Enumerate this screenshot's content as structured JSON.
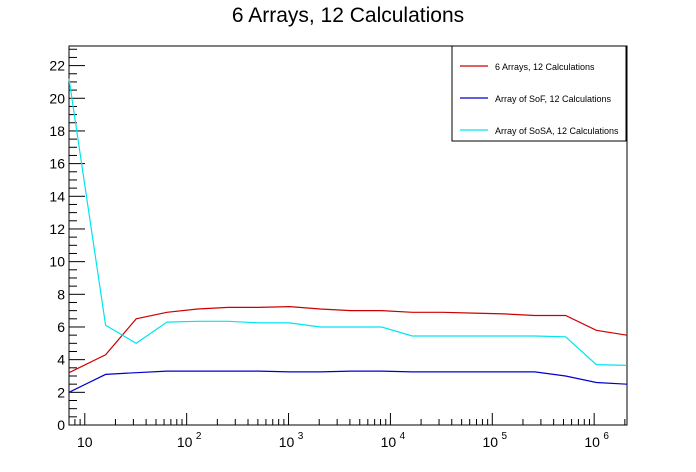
{
  "chart_data": {
    "type": "line",
    "title": "6 Arrays, 12 Calculations",
    "xlabel": "",
    "ylabel": "",
    "xscale": "log",
    "xlim": [
      7,
      2100000
    ],
    "ylim": [
      0,
      23.2
    ],
    "grid": false,
    "legend_position": "top-right",
    "y_ticks": [
      "0",
      "2",
      "4",
      "6",
      "8",
      "10",
      "12",
      "14",
      "16",
      "18",
      "20",
      "22"
    ],
    "x_tick_labels": [
      {
        "value": 10,
        "base": "10",
        "exp": ""
      },
      {
        "value": 100,
        "base": "10",
        "exp": "2"
      },
      {
        "value": 1000,
        "base": "10",
        "exp": "3"
      },
      {
        "value": 10000,
        "base": "10",
        "exp": "4"
      },
      {
        "value": 100000,
        "base": "10",
        "exp": "5"
      },
      {
        "value": 1000000,
        "base": "10",
        "exp": "6"
      }
    ],
    "series": [
      {
        "name": "6 Arrays, 12 Calculations",
        "color": "#cc0000",
        "x": [
          7,
          16,
          32,
          64,
          128,
          256,
          512,
          1024,
          2048,
          4096,
          8192,
          16384,
          32768,
          65536,
          131072,
          262144,
          524288,
          1048576,
          2097152
        ],
        "y": [
          3.2,
          4.3,
          6.5,
          6.9,
          7.1,
          7.2,
          7.2,
          7.25,
          7.1,
          7.0,
          7.0,
          6.9,
          6.9,
          6.85,
          6.8,
          6.7,
          6.7,
          5.8,
          5.5
        ]
      },
      {
        "name": "Array of SoF, 12 Calculations",
        "color": "#0000cc",
        "x": [
          7,
          16,
          32,
          64,
          128,
          256,
          512,
          1024,
          2048,
          4096,
          8192,
          16384,
          32768,
          65536,
          131072,
          262144,
          524288,
          1048576,
          2097152
        ],
        "y": [
          2.0,
          3.1,
          3.2,
          3.3,
          3.3,
          3.3,
          3.3,
          3.25,
          3.25,
          3.3,
          3.3,
          3.25,
          3.25,
          3.25,
          3.25,
          3.25,
          3.0,
          2.6,
          2.5
        ]
      },
      {
        "name": "Array of SoSA, 12 Calculations",
        "color": "#00e5ee",
        "x": [
          7,
          16,
          32,
          64,
          128,
          256,
          512,
          1024,
          2048,
          4096,
          8192,
          16384,
          32768,
          65536,
          131072,
          262144,
          524288,
          1048576,
          2097152
        ],
        "y": [
          21.2,
          6.1,
          5.0,
          6.3,
          6.35,
          6.35,
          6.25,
          6.25,
          6.0,
          6.0,
          6.0,
          5.45,
          5.45,
          5.45,
          5.45,
          5.45,
          5.4,
          3.7,
          3.65
        ]
      }
    ]
  }
}
